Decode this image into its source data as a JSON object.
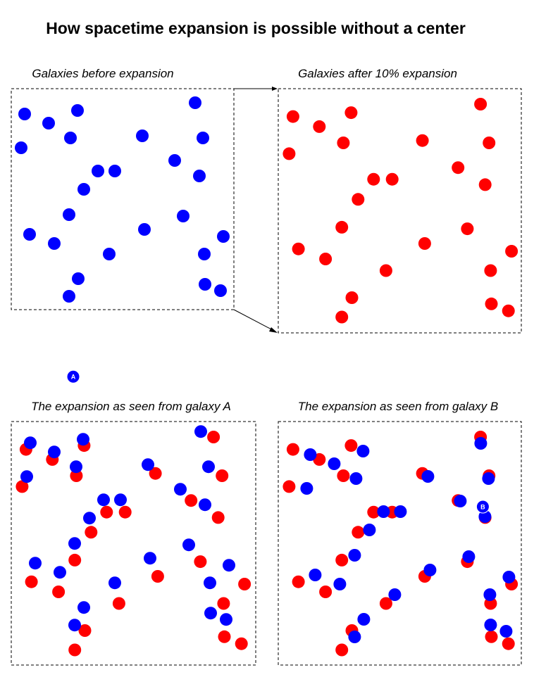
{
  "title": "How spacetime expansion is possible without a center",
  "panels": {
    "before": {
      "title": "Galaxies before expansion"
    },
    "after": {
      "title": "Galaxies after 10% expansion"
    },
    "from_a": {
      "title": "The expansion as seen from galaxy A",
      "marker": "A"
    },
    "from_b": {
      "title": "The expansion as seen from galaxy B",
      "marker": "B"
    }
  },
  "colors": {
    "before": "#0000ff",
    "after": "#ff0000",
    "label_text": "#ffffff"
  },
  "expansion_percent": 10
}
